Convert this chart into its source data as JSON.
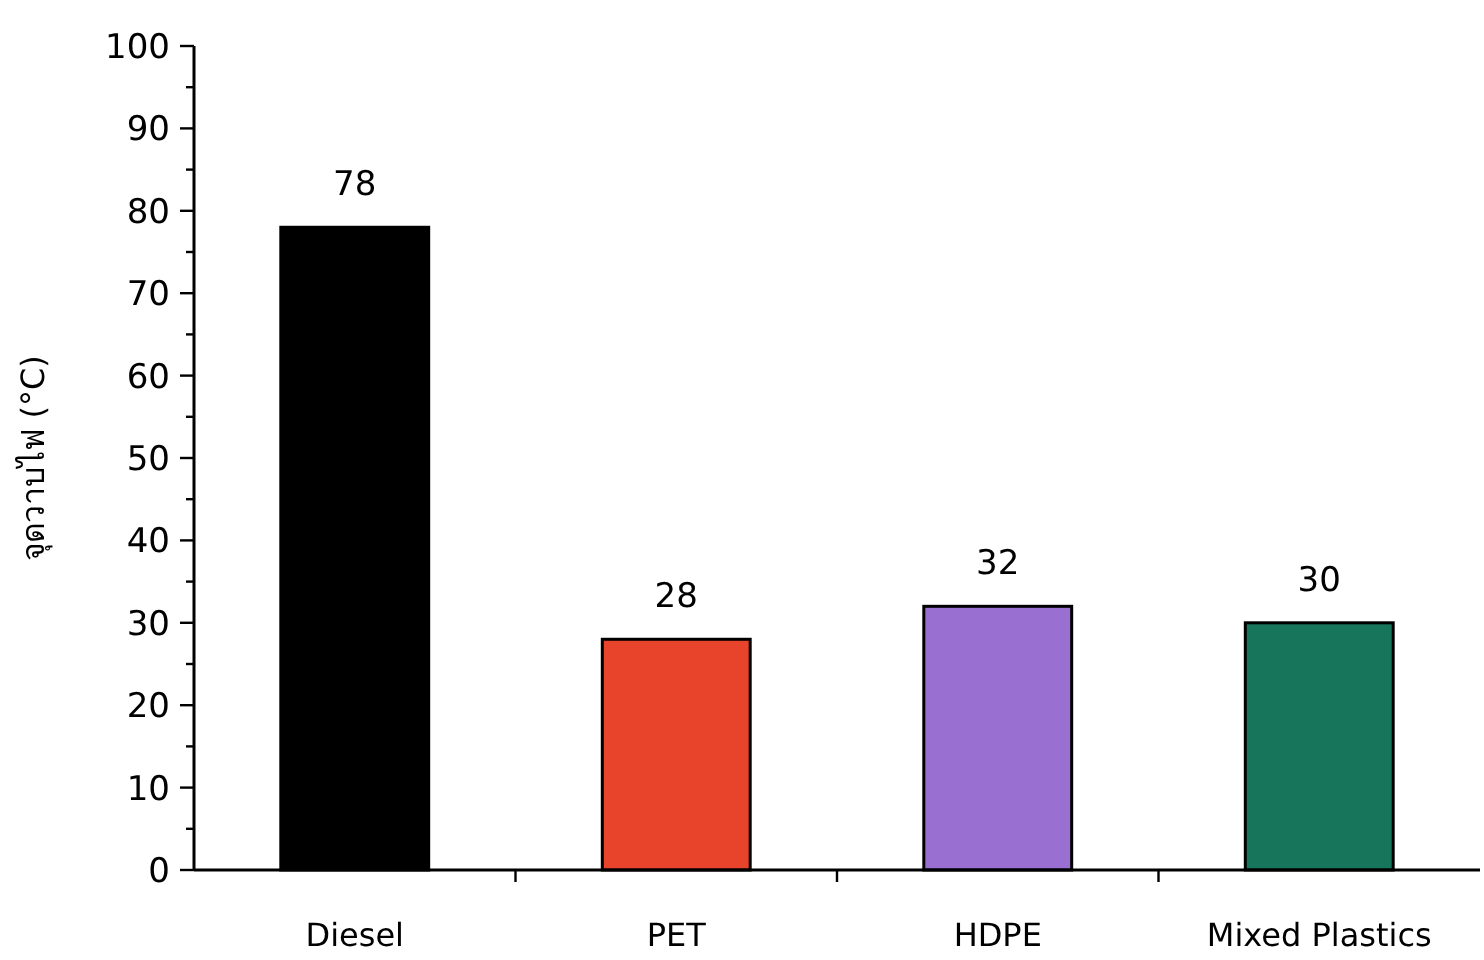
{
  "chart_data": {
    "type": "bar",
    "ylabel": "จุดวาบไฟ (°C)",
    "categories": [
      "Diesel",
      "PET",
      "HDPE",
      "Mixed Plastics"
    ],
    "values": [
      78,
      28,
      32,
      30
    ],
    "colors": [
      "#000000",
      "#e8432b",
      "#9a6fd2",
      "#16755a"
    ],
    "ylim": [
      0,
      100
    ],
    "yticks": [
      0,
      {
        "value": 5,
        "label": null
      },
      10,
      {
        "value": 15,
        "label": null
      },
      20,
      {
        "value": 25,
        "label": null
      },
      30,
      {
        "value": 35,
        "label": null
      },
      40,
      {
        "value": 45,
        "label": null
      },
      50,
      {
        "value": 55,
        "label": null
      },
      60,
      {
        "value": 65,
        "label": null
      },
      70,
      {
        "value": 75,
        "label": null
      },
      80,
      {
        "value": 85,
        "label": null
      },
      90,
      {
        "value": 95,
        "label": null
      },
      100
    ],
    "data_labels": true,
    "grid": false
  }
}
